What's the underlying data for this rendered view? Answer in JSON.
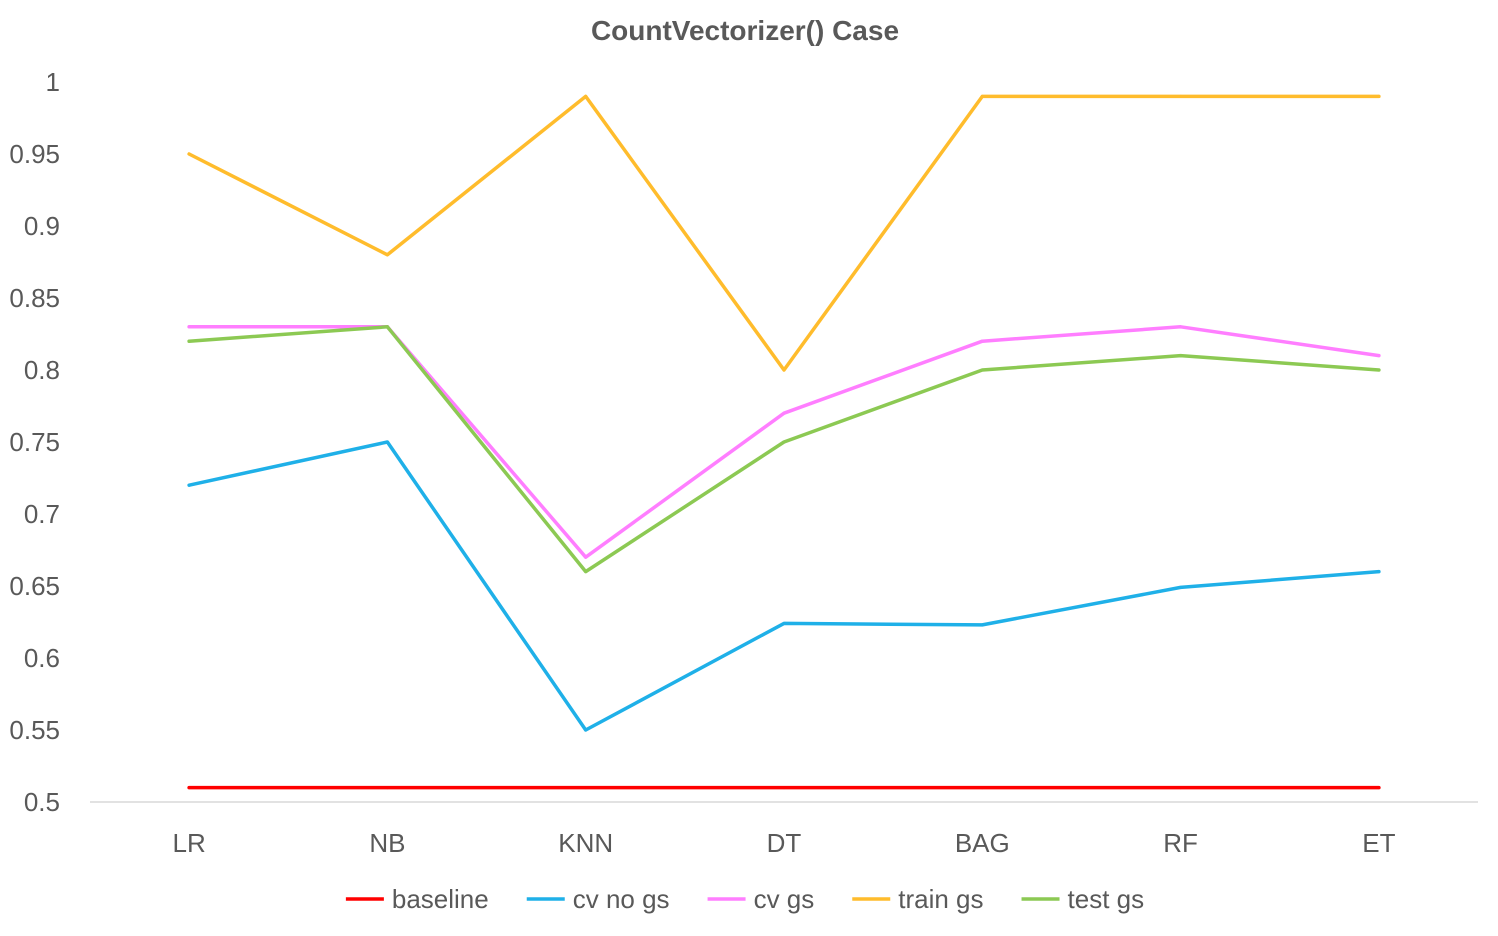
{
  "chart_data": {
    "type": "line",
    "title": "CountVectorizer() Case",
    "xlabel": "",
    "ylabel": "",
    "categories": [
      "LR",
      "NB",
      "KNN",
      "DT",
      "BAG",
      "RF",
      "ET"
    ],
    "ylim": [
      0.5,
      1
    ],
    "yticks": [
      "0.5",
      "0.55",
      "0.6",
      "0.65",
      "0.7",
      "0.75",
      "0.8",
      "0.85",
      "0.9",
      "0.95",
      "1"
    ],
    "grid": false,
    "legend_position": "bottom",
    "series": [
      {
        "name": "baseline",
        "color": "#FF0000",
        "values": [
          0.51,
          0.51,
          0.51,
          0.51,
          0.51,
          0.51,
          0.51
        ]
      },
      {
        "name": "cv no gs",
        "color": "#1FB0E8",
        "values": [
          0.72,
          0.75,
          0.55,
          0.624,
          0.623,
          0.649,
          0.66
        ]
      },
      {
        "name": "cv gs",
        "color": "#FF7EFF",
        "values": [
          0.83,
          0.83,
          0.67,
          0.77,
          0.82,
          0.83,
          0.81
        ]
      },
      {
        "name": "train gs",
        "color": "#FFBC2C",
        "values": [
          0.95,
          0.88,
          0.99,
          0.8,
          0.99,
          0.99,
          0.99
        ]
      },
      {
        "name": "test gs",
        "color": "#8CC953",
        "values": [
          0.82,
          0.83,
          0.66,
          0.75,
          0.8,
          0.81,
          0.8
        ]
      }
    ]
  }
}
